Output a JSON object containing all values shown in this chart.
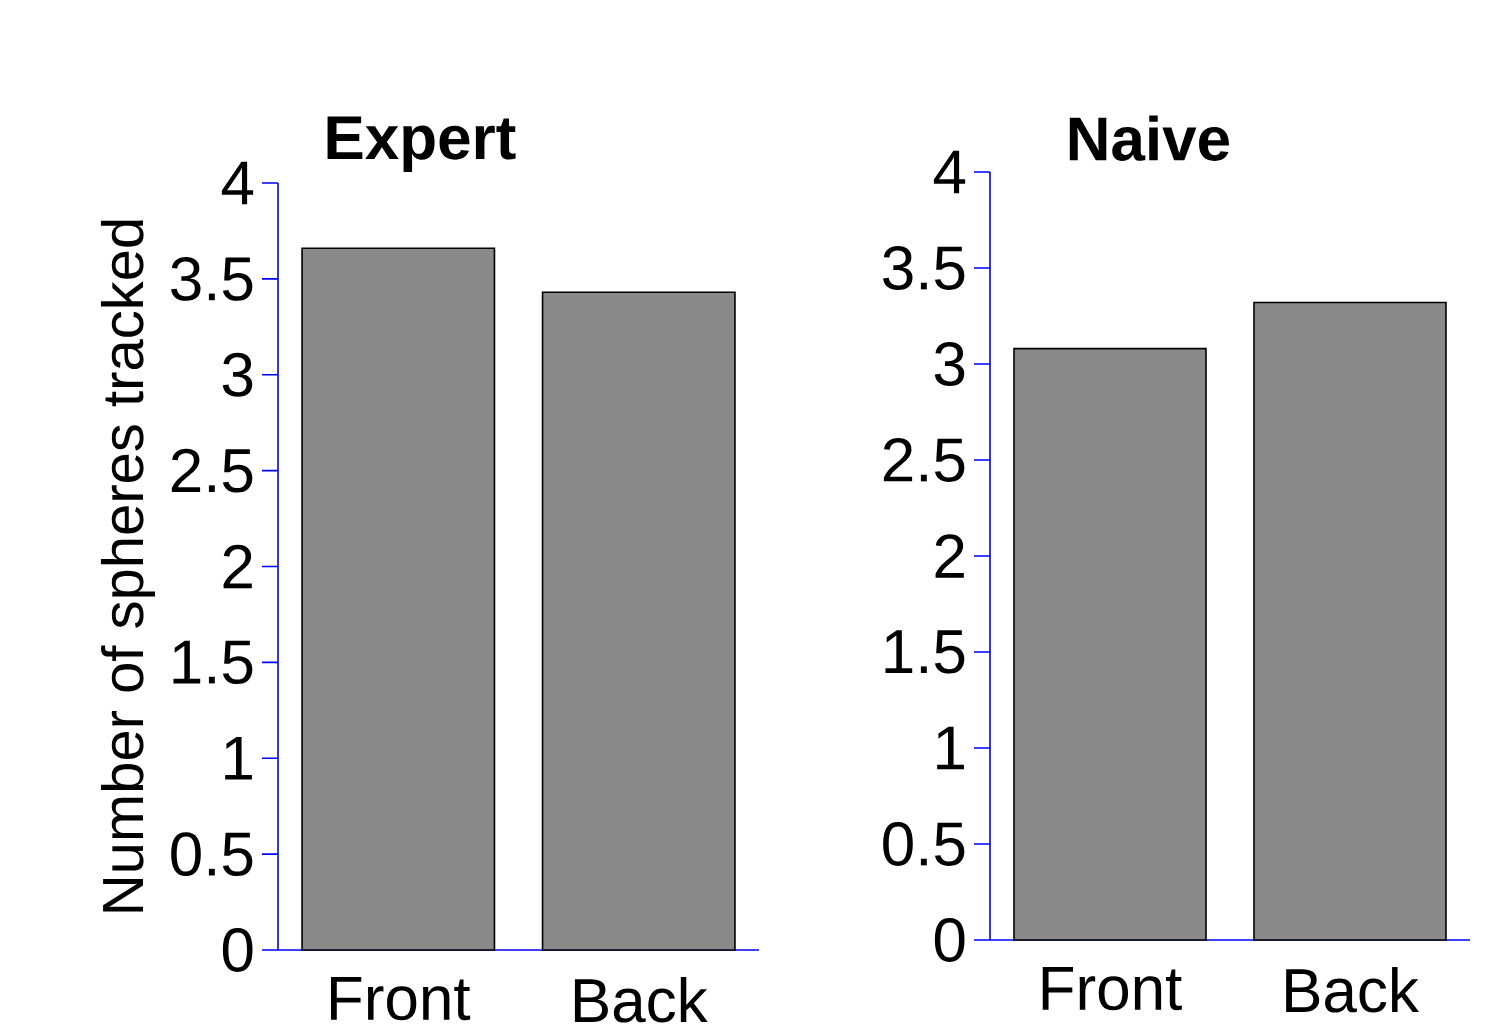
{
  "chart_data": [
    {
      "type": "bar",
      "title": "Expert",
      "ylabel": "Number of spheres tracked",
      "categories": [
        "Front",
        "Back"
      ],
      "values": [
        3.66,
        3.43
      ],
      "color": "#8a8a8a",
      "ylim": [
        0,
        4
      ],
      "yticks": [
        0,
        0.5,
        1,
        1.5,
        2,
        2.5,
        3,
        3.5,
        4
      ]
    },
    {
      "type": "bar",
      "title": "Naive",
      "categories": [
        "Front",
        "Back"
      ],
      "values": [
        3.08,
        3.32
      ],
      "color": "#8a8a8a",
      "ylim": [
        0,
        4
      ],
      "yticks": [
        0,
        0.5,
        1,
        1.5,
        2,
        2.5,
        3,
        3.5,
        4
      ]
    }
  ]
}
